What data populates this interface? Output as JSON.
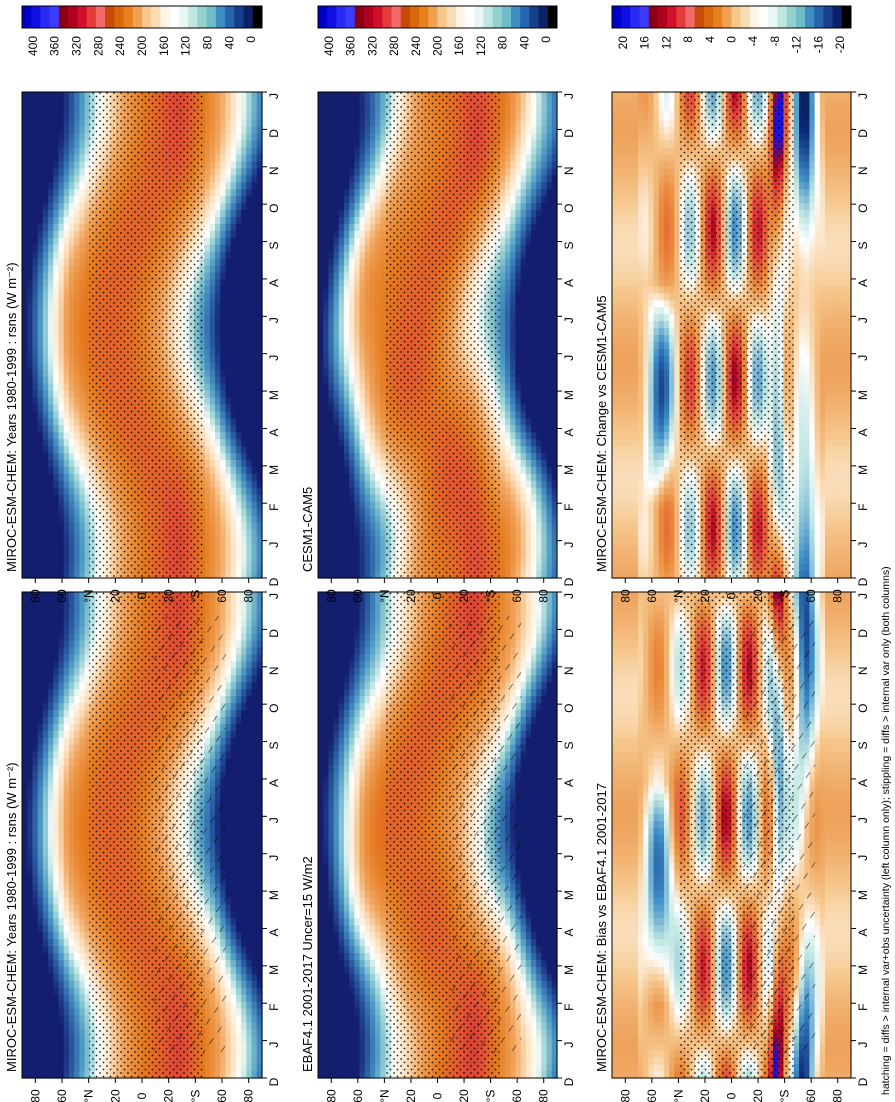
{
  "figure": {
    "footnote": "hatching = diffs > internal var+obs uncertainty (left column only); stippling = diffs > internal var only (both columns)"
  },
  "axis_labels": {
    "months": [
      "D",
      "J",
      "F",
      "M",
      "A",
      "M",
      "J",
      "J",
      "A",
      "S",
      "O",
      "N",
      "D",
      "J"
    ],
    "lat_ticks": [
      "80",
      "60",
      "°N",
      "20",
      "0",
      "20",
      "°S",
      "60",
      "80"
    ]
  },
  "colorbars": {
    "abs": {
      "labels": [
        "400",
        "360",
        "320",
        "280",
        "240",
        "200",
        "160",
        "120",
        "80",
        "40",
        "0"
      ],
      "colors": [
        "#0000c8",
        "#1010e6",
        "#2a2af5",
        "#3c3cff",
        "#8c0014",
        "#b00020",
        "#d0102a",
        "#e43a3a",
        "#f36a6a",
        "#c84a08",
        "#d8680c",
        "#e8801e",
        "#f0a050",
        "#f6c78c",
        "#faddb4",
        "#fff4e6",
        "#ffffff",
        "#e8f6f4",
        "#bfe6e0",
        "#93d2cc",
        "#6fbcc8",
        "#3e8ec4",
        "#2465ae",
        "#173f8c",
        "#0b2266",
        "#000000"
      ]
    },
    "diff": {
      "labels": [
        "20",
        "16",
        "12",
        "8",
        "4",
        "0",
        "-4",
        "-8",
        "-12",
        "-16",
        "-20"
      ],
      "colors": [
        "#0000c8",
        "#1010e6",
        "#2a2af5",
        "#3c3cff",
        "#8c0014",
        "#b00020",
        "#d0102a",
        "#e43a3a",
        "#f36a6a",
        "#c84a08",
        "#d8680c",
        "#e8801e",
        "#f0a050",
        "#f6c78c",
        "#faddb4",
        "#fff4e6",
        "#ffffff",
        "#e8f6f4",
        "#bfe6e0",
        "#93d2cc",
        "#6fbcc8",
        "#3e8ec4",
        "#2465ae",
        "#173f8c",
        "#0b2266",
        "#000000"
      ]
    }
  },
  "chart_data": [
    {
      "type": "heatmap",
      "title": "MIROC-ESM-CHEM: Years 1980-1999 : rsns (W m⁻²)",
      "x": [
        "D",
        "J",
        "F",
        "M",
        "A",
        "M",
        "J",
        "J",
        "A",
        "S",
        "O",
        "N",
        "D",
        "J"
      ],
      "y": [
        "80N",
        "60N",
        "40N",
        "20N",
        "0",
        "20S",
        "40S",
        "60S",
        "80S"
      ],
      "scale": "abs",
      "stipple": true,
      "hatch": true
    },
    {
      "type": "heatmap",
      "title": "MIROC-ESM-CHEM: Years 1980-1999 : rsns (W m⁻²)",
      "x": [
        "D",
        "J",
        "F",
        "M",
        "A",
        "M",
        "J",
        "J",
        "A",
        "S",
        "O",
        "N",
        "D",
        "J"
      ],
      "y": [
        "80N",
        "60N",
        "40N",
        "20N",
        "0",
        "20S",
        "40S",
        "60S",
        "80S"
      ],
      "scale": "abs",
      "stipple": true,
      "hatch": false
    },
    {
      "type": "heatmap",
      "title": "EBAF4.1 2001-2017 Uncer=15 W/m2",
      "x": [
        "D",
        "J",
        "F",
        "M",
        "A",
        "M",
        "J",
        "J",
        "A",
        "S",
        "O",
        "N",
        "D",
        "J"
      ],
      "y": [
        "80N",
        "60N",
        "40N",
        "20N",
        "0",
        "20S",
        "40S",
        "60S",
        "80S"
      ],
      "scale": "abs",
      "stipple": true,
      "hatch": true
    },
    {
      "type": "heatmap",
      "title": "CESM1-CAM5",
      "x": [
        "D",
        "J",
        "F",
        "M",
        "A",
        "M",
        "J",
        "J",
        "A",
        "S",
        "O",
        "N",
        "D",
        "J"
      ],
      "y": [
        "80N",
        "60N",
        "40N",
        "20N",
        "0",
        "20S",
        "40S",
        "60S",
        "80S"
      ],
      "scale": "abs",
      "stipple": true,
      "hatch": false
    },
    {
      "type": "heatmap",
      "title": "MIROC-ESM-CHEM: Bias vs EBAF4.1 2001-2017",
      "x": [
        "D",
        "J",
        "F",
        "M",
        "A",
        "M",
        "J",
        "J",
        "A",
        "S",
        "O",
        "N",
        "D",
        "J"
      ],
      "y": [
        "80N",
        "60N",
        "40N",
        "20N",
        "0",
        "20S",
        "40S",
        "60S",
        "80S"
      ],
      "scale": "diff",
      "stipple": true,
      "hatch": true
    },
    {
      "type": "heatmap",
      "title": "MIROC-ESM-CHEM: Change vs CESM1-CAM5",
      "x": [
        "D",
        "J",
        "F",
        "M",
        "A",
        "M",
        "J",
        "J",
        "A",
        "S",
        "O",
        "N",
        "D",
        "J"
      ],
      "y": [
        "80N",
        "60N",
        "40N",
        "20N",
        "0",
        "20S",
        "40S",
        "60S",
        "80S"
      ],
      "scale": "diff",
      "stipple": true,
      "hatch": false
    }
  ]
}
